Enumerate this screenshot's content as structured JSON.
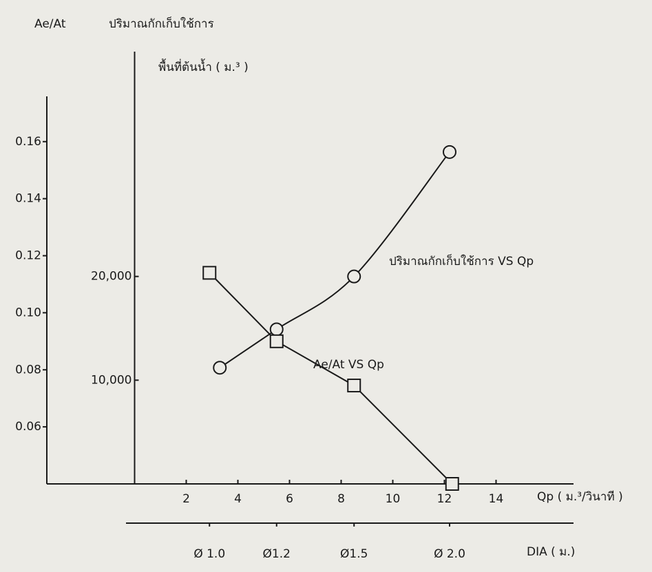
{
  "chart_data": {
    "type": "line",
    "y_label": "Ae/At",
    "y2_label": [
      "ปริมาณกักเก็บใช้การ",
      "พื้นที่ต้นน้ำ ( ม.³ )"
    ],
    "x_label": "Qp ( ม.³/วินาที )",
    "xlim": [
      -3.4,
      17
    ],
    "xticks": [
      2,
      4,
      6,
      8,
      10,
      12,
      14
    ],
    "ylim": [
      0.04,
      0.2
    ],
    "yticks": [
      {
        "value": 0.06,
        "label": "0.06"
      },
      {
        "value": 0.08,
        "label": "0.08"
      },
      {
        "value": 0.1,
        "label": "0.10"
      },
      {
        "value": 0.12,
        "label": "0.12"
      },
      {
        "value": 0.14,
        "label": "0.14"
      },
      {
        "value": 0.16,
        "label": "0.16"
      }
    ],
    "y2lim": [
      0,
      44000
    ],
    "y2ticks": [
      {
        "value": 10000,
        "label": "10,000"
      },
      {
        "value": 20000,
        "label": "20,000"
      }
    ],
    "series": [
      {
        "name": "ปริมาณกักเก็บใช้การ VS Qp",
        "color": "#1a1a1a",
        "marker": "circle",
        "axis": "y2",
        "x": [
          3.3,
          5.5,
          8.5,
          12.2
        ],
        "values": [
          11200,
          14900,
          20000,
          32000
        ]
      },
      {
        "name": "Ae/At VS Qp",
        "color": "#1a1a1a",
        "marker": "square",
        "x": [
          2.9,
          5.5,
          8.5,
          12.3
        ],
        "values": [
          0.114,
          0.09,
          0.0745,
          0.04
        ]
      }
    ],
    "dia_axis": {
      "label": "DIA ( ม.)",
      "labels": [
        "Ø 1.0",
        "Ø1.2",
        "Ø1.5",
        "Ø 2.0"
      ],
      "positions": [
        2.9,
        5.5,
        8.5,
        12.2
      ]
    }
  }
}
